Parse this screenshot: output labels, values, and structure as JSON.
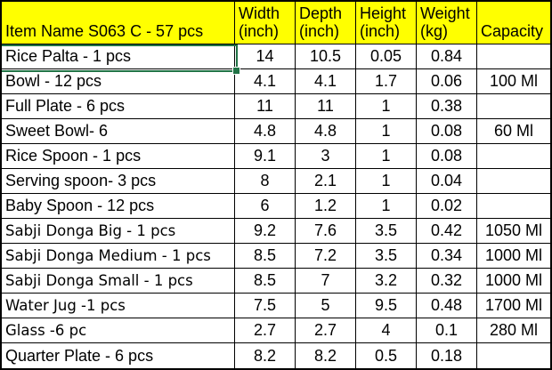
{
  "table": {
    "headers": [
      {
        "title": "Item Name S063 C - 57 pcs",
        "sub": ""
      },
      {
        "title": "Width",
        "sub": "(inch)"
      },
      {
        "title": "Depth",
        "sub": "(inch)"
      },
      {
        "title": "Height",
        "sub": "(inch)"
      },
      {
        "title": "Weight",
        "sub": "(kg)"
      },
      {
        "title": "Capacity",
        "sub": ""
      }
    ],
    "rows": [
      {
        "item": "Rice Palta - 1 pcs",
        "width": "14",
        "depth": "10.5",
        "height": "0.05",
        "weight": "0.84",
        "capacity": ""
      },
      {
        "item": "Bowl - 12 pcs",
        "width": "4.1",
        "depth": "4.1",
        "height": "1.7",
        "weight": "0.06",
        "capacity": "100 Ml"
      },
      {
        "item": "Full Plate - 6 pcs",
        "width": "11",
        "depth": "11",
        "height": "1",
        "weight": "0.38",
        "capacity": ""
      },
      {
        "item": "Sweet Bowl- 6",
        "width": "4.8",
        "depth": "4.8",
        "height": "1",
        "weight": "0.08",
        "capacity": "60 Ml"
      },
      {
        "item": "Rice Spoon - 1 pcs",
        "width": "9.1",
        "depth": "3",
        "height": "1",
        "weight": "0.08",
        "capacity": ""
      },
      {
        "item": "Serving spoon- 3 pcs",
        "width": "8",
        "depth": "2.1",
        "height": "1",
        "weight": "0.04",
        "capacity": ""
      },
      {
        "item": "Baby Spoon - 12 pcs",
        "width": "6",
        "depth": "1.2",
        "height": "1",
        "weight": "0.02",
        "capacity": ""
      },
      {
        "item": "Sabji Donga Big - 1 pcs",
        "width": "9.2",
        "depth": "7.6",
        "height": "3.5",
        "weight": "0.42",
        "capacity": "1050 Ml"
      },
      {
        "item": "Sabji Donga Medium - 1 pcs",
        "width": "8.5",
        "depth": "7.2",
        "height": "3.5",
        "weight": "0.34",
        "capacity": "1000 Ml"
      },
      {
        "item": "Sabji Donga Small - 1 pcs",
        "width": "8.5",
        "depth": "7",
        "height": "3.2",
        "weight": "0.32",
        "capacity": "1000 Ml"
      },
      {
        "item": "Water Jug -1 pcs",
        "width": "7.5",
        "depth": "5",
        "height": "9.5",
        "weight": "0.48",
        "capacity": "1700 Ml"
      },
      {
        "item": "Glass -6 pc",
        "width": "2.7",
        "depth": "2.7",
        "height": "4",
        "weight": "0.1",
        "capacity": "280 Ml"
      },
      {
        "item": "Quarter Plate - 6 pcs",
        "width": "8.2",
        "depth": "8.2",
        "height": "0.5",
        "weight": "0.18",
        "capacity": ""
      }
    ]
  },
  "selection": {
    "row": 0,
    "col": 0,
    "cell_text": "Rice Palta - 1 pcs"
  },
  "colors": {
    "header_fill": "#FFFF00",
    "grid_border": "#000000",
    "selection_green": "#217346",
    "background": "#FFFFFF",
    "text": "#000000"
  }
}
